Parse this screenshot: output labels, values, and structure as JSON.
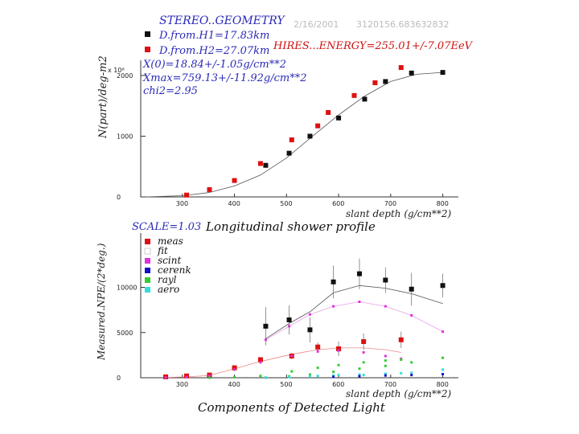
{
  "header": {
    "date": "2/16/2001",
    "time": "3120156.683632832",
    "geometry_title": "STEREO..GEOMETRY",
    "distance_h1": "D.from.H1=17.83km",
    "distance_h2": "D.from.H2=27.07km",
    "energy": "HIRES...ENERGY=255.01+/-7.07EeV",
    "fit_x0": "X(0)=18.84+/-1.05g/cm**2",
    "fit_xmax": "Xmax=759.13+/-11.92g/cm**2",
    "fit_chi2": "chi2=2.95",
    "scale": "SCALE=1.03",
    "top_exponent": "x 10⁸"
  },
  "colors": {
    "blue_text": "#2a2ab8",
    "red_text": "#d01010",
    "meas_red": "#dd1111",
    "h1_black": "#111111",
    "scint": "#dd33dd",
    "cerenk": "#1111cc",
    "rayl": "#33cc33",
    "aero": "#33dddd",
    "fit_line": "#555555"
  },
  "legend": [
    {
      "name": "meas",
      "color": "#dd1111"
    },
    {
      "name": "fit",
      "color": "#ffffff"
    },
    {
      "name": "scint",
      "color": "#dd33dd"
    },
    {
      "name": "cerenk",
      "color": "#1111cc"
    },
    {
      "name": "rayl",
      "color": "#33cc33"
    },
    {
      "name": "aero",
      "color": "#33dddd"
    }
  ],
  "chart_data": [
    {
      "type": "scatter",
      "title": "Longitudinal shower profile",
      "xlabel": "slant depth (g/cm**2)",
      "ylabel": "N(part)/deg-m2",
      "xlim": [
        220,
        830
      ],
      "ylim": [
        0,
        2250
      ],
      "xticks": [
        300,
        400,
        500,
        600,
        700,
        800
      ],
      "yticks": [
        0,
        1000,
        2000
      ],
      "series": [
        {
          "name": "H1",
          "color": "#111111",
          "points": [
            [
              460,
              520
            ],
            [
              505,
              720
            ],
            [
              545,
              1000
            ],
            [
              600,
              1300
            ],
            [
              650,
              1610
            ],
            [
              690,
              1900
            ],
            [
              740,
              2040
            ],
            [
              800,
              2050
            ]
          ]
        },
        {
          "name": "H2",
          "color": "#dd1111",
          "points": [
            [
              308,
              30
            ],
            [
              352,
              120
            ],
            [
              400,
              270
            ],
            [
              450,
              550
            ],
            [
              510,
              940
            ],
            [
              560,
              1170
            ],
            [
              580,
              1390
            ],
            [
              630,
              1670
            ],
            [
              670,
              1880
            ],
            [
              720,
              2130
            ]
          ]
        }
      ],
      "fit": [
        [
          230,
          0
        ],
        [
          300,
          20
        ],
        [
          350,
          70
        ],
        [
          400,
          180
        ],
        [
          450,
          360
        ],
        [
          500,
          640
        ],
        [
          550,
          1000
        ],
        [
          600,
          1350
        ],
        [
          650,
          1660
        ],
        [
          700,
          1900
        ],
        [
          750,
          2020
        ],
        [
          800,
          2050
        ]
      ]
    },
    {
      "type": "scatter",
      "title": "Components of Detected Light",
      "xlabel": "slant depth (g/cm**2)",
      "ylabel": "Measured.NPE/(2*deg.)",
      "xlim": [
        220,
        830
      ],
      "ylim": [
        0,
        16000
      ],
      "xticks": [
        300,
        400,
        500,
        600,
        700,
        800
      ],
      "yticks": [
        0,
        5000,
        10000
      ],
      "series": [
        {
          "name": "meas_H1",
          "color": "#111111",
          "points": [
            [
              460,
              5700
            ],
            [
              505,
              6400
            ],
            [
              545,
              5300
            ],
            [
              590,
              10600
            ],
            [
              640,
              11500
            ],
            [
              690,
              10800
            ],
            [
              740,
              9800
            ],
            [
              800,
              10200
            ]
          ],
          "errors": [
            2100,
            1600,
            1400,
            1800,
            1700,
            1400,
            1800,
            1300
          ]
        },
        {
          "name": "meas_H2",
          "color": "#dd1111",
          "points": [
            [
              268,
              100
            ],
            [
              308,
              200
            ],
            [
              352,
              300
            ],
            [
              400,
              1100
            ],
            [
              450,
              2000
            ],
            [
              510,
              2400
            ],
            [
              560,
              3400
            ],
            [
              600,
              3200
            ],
            [
              648,
              4000
            ],
            [
              720,
              4200
            ]
          ],
          "errors": [
            60,
            80,
            120,
            180,
            260,
            350,
            500,
            800,
            900,
            900
          ]
        },
        {
          "name": "scint",
          "color": "#dd33dd",
          "points": [
            [
              460,
              4200
            ],
            [
              505,
              5700
            ],
            [
              545,
              7000
            ],
            [
              590,
              7900
            ],
            [
              640,
              8400
            ],
            [
              690,
              7900
            ],
            [
              740,
              6900
            ],
            [
              800,
              5100
            ],
            [
              268,
              20
            ],
            [
              308,
              80
            ],
            [
              352,
              220
            ],
            [
              400,
              900
            ],
            [
              450,
              1700
            ],
            [
              510,
              2400
            ],
            [
              560,
              2900
            ],
            [
              600,
              3000
            ],
            [
              648,
              2800
            ],
            [
              690,
              2400
            ],
            [
              720,
              2100
            ]
          ]
        },
        {
          "name": "rayl",
          "color": "#33cc33",
          "points": [
            [
              460,
              20
            ],
            [
              505,
              150
            ],
            [
              545,
              350
            ],
            [
              590,
              650
            ],
            [
              640,
              1000
            ],
            [
              690,
              1300
            ],
            [
              740,
              1700
            ],
            [
              800,
              2200
            ],
            [
              352,
              0
            ],
            [
              400,
              60
            ],
            [
              450,
              200
            ],
            [
              510,
              700
            ],
            [
              560,
              1100
            ],
            [
              600,
              1400
            ],
            [
              648,
              1700
            ],
            [
              690,
              1900
            ],
            [
              720,
              2000
            ]
          ]
        },
        {
          "name": "aero",
          "color": "#33dddd",
          "points": [
            [
              460,
              10
            ],
            [
              505,
              60
            ],
            [
              545,
              150
            ],
            [
              590,
              250
            ],
            [
              640,
              350
            ],
            [
              690,
              450
            ],
            [
              740,
              550
            ],
            [
              800,
              900
            ],
            [
              560,
              200
            ],
            [
              600,
              300
            ],
            [
              648,
              300
            ],
            [
              690,
              400
            ],
            [
              720,
              500
            ]
          ]
        },
        {
          "name": "cerenk",
          "color": "#1111cc",
          "points": [
            [
              590,
              100
            ],
            [
              640,
              180
            ],
            [
              690,
              250
            ],
            [
              740,
              300
            ],
            [
              800,
              400
            ]
          ]
        }
      ],
      "fit_h1": [
        [
          460,
          4300
        ],
        [
          505,
          6000
        ],
        [
          545,
          7300
        ],
        [
          590,
          9400
        ],
        [
          640,
          10200
        ],
        [
          690,
          9900
        ],
        [
          740,
          9300
        ],
        [
          800,
          8200
        ]
      ],
      "fit_h2": [
        [
          268,
          30
        ],
        [
          308,
          100
        ],
        [
          352,
          250
        ],
        [
          400,
          1000
        ],
        [
          450,
          1800
        ],
        [
          510,
          2600
        ],
        [
          560,
          3100
        ],
        [
          600,
          3300
        ],
        [
          648,
          3300
        ],
        [
          690,
          3100
        ],
        [
          720,
          2800
        ]
      ],
      "fit_scint": [
        [
          460,
          4200
        ],
        [
          505,
          5700
        ],
        [
          545,
          7000
        ],
        [
          590,
          7900
        ],
        [
          640,
          8400
        ],
        [
          690,
          7900
        ],
        [
          740,
          6900
        ],
        [
          800,
          5100
        ]
      ]
    }
  ]
}
